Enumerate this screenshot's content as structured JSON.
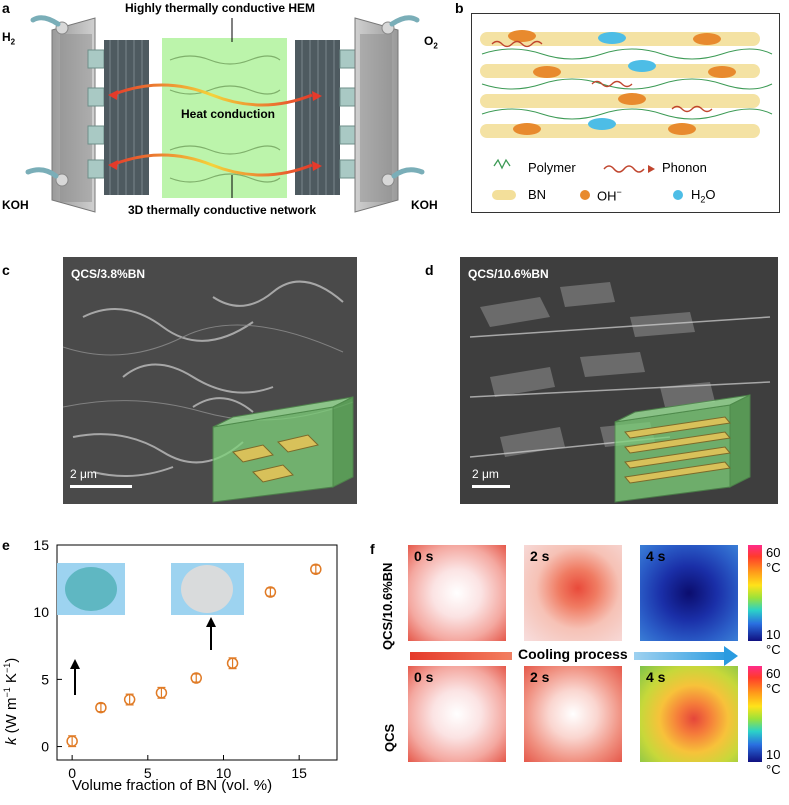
{
  "panel_labels": {
    "a": "a",
    "b": "b",
    "c": "c",
    "d": "d",
    "e": "e",
    "f": "f"
  },
  "panel_a": {
    "title_top": "Highly thermally conductive HEM",
    "center": "Heat conduction",
    "bottom": "3D thermally conductive network",
    "h2": "H",
    "h2_sub": "2",
    "o2": "O",
    "o2_sub": "2",
    "koh_left": "KOH",
    "koh_right": "KOH"
  },
  "panel_b": {
    "legend": {
      "polymer": "Polymer",
      "phonon": "Phonon",
      "bn": "BN",
      "oh": "OH",
      "oh_sup": "−",
      "h2o_h": "H",
      "h2o_sub": "2",
      "h2o_o": "O"
    }
  },
  "panel_c": {
    "label": "QCS/3.8%BN",
    "scale": "2 μm"
  },
  "panel_d": {
    "label": "QCS/10.6%BN",
    "scale": "2 μm"
  },
  "panel_f": {
    "row1_label": "QCS/10.6%BN",
    "row2_label": "QCS",
    "times": [
      "0 s",
      "2 s",
      "4 s"
    ],
    "cooling": "Cooling process",
    "cbar_max": "60 °C",
    "cbar_min": "10 °C"
  },
  "chart_data": {
    "type": "scatter",
    "title": "",
    "xlabel": "Volume fraction of BN (vol. %)",
    "ylabel_main": "k",
    "ylabel_units": "(W m",
    "ylabel_sup1": "−1",
    "ylabel_mid": " K",
    "ylabel_sup2": "−1",
    "ylabel_end": ")",
    "xlim": [
      -1,
      17.5
    ],
    "ylim": [
      -1,
      15
    ],
    "xticks": [
      0,
      5,
      10,
      15
    ],
    "yticks": [
      0,
      5,
      10,
      15
    ],
    "grid": false,
    "marker_color": "#E07B26",
    "series": [
      {
        "x": [
          0,
          1.9,
          3.8,
          5.9,
          8.2,
          10.6,
          13.1,
          16.1
        ],
        "y": [
          0.4,
          2.9,
          3.5,
          4.0,
          5.1,
          6.2,
          11.5,
          13.2
        ],
        "err": [
          0.4,
          0.3,
          0.4,
          0.4,
          0.3,
          0.4,
          0.3,
          0.3
        ]
      }
    ]
  }
}
